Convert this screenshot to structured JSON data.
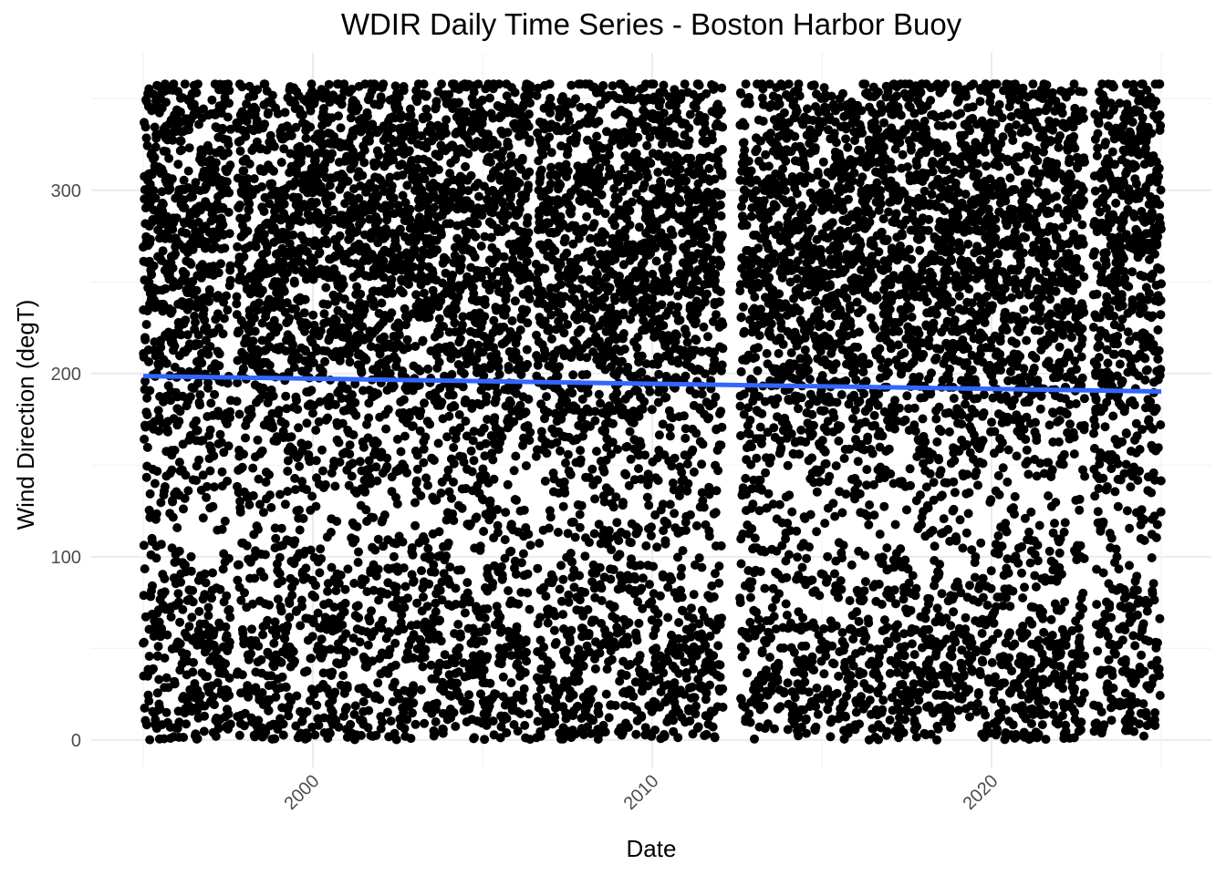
{
  "chart_data": {
    "type": "scatter",
    "title": "WDIR Daily Time Series - Boston Harbor Buoy",
    "xlabel": "Date",
    "ylabel": "Wind Direction (degT)",
    "x_range": [
      "1995-01-01",
      "2024-12-31"
    ],
    "ylim": [
      -15,
      375
    ],
    "x_ticks": [
      {
        "value": "2000-01-01",
        "label": "2000"
      },
      {
        "value": "2010-01-01",
        "label": "2010"
      },
      {
        "value": "2020-01-01",
        "label": "2020"
      }
    ],
    "y_ticks": [
      {
        "value": 0,
        "label": "0"
      },
      {
        "value": 100,
        "label": "100"
      },
      {
        "value": 200,
        "label": "200"
      },
      {
        "value": 300,
        "label": "300"
      }
    ],
    "grid": true,
    "point_color": "#000000",
    "observation_segments": [
      {
        "start": "1995-01-01",
        "end": "1997-07-31"
      },
      {
        "start": "1997-10-01",
        "end": "2006-05-31"
      },
      {
        "start": "2006-08-01",
        "end": "2012-01-31"
      },
      {
        "start": "2012-08-01",
        "end": "2022-09-30"
      },
      {
        "start": "2023-01-01",
        "end": "2024-12-31"
      }
    ],
    "trend": {
      "color": "#3366ff",
      "points": [
        {
          "x": "1995-01-01",
          "y": 198.6
        },
        {
          "x": "2024-12-31",
          "y": 190.2
        }
      ]
    }
  }
}
